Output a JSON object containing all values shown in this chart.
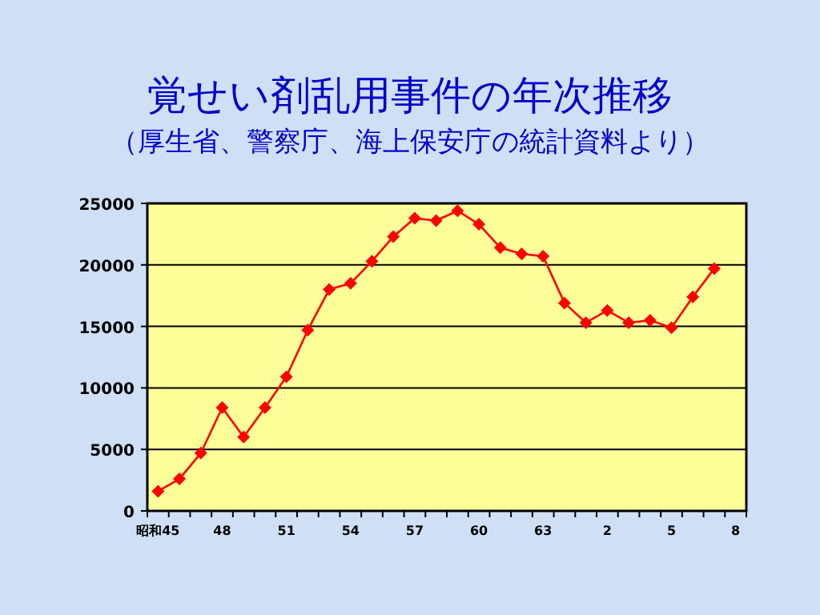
{
  "chart_data": {
    "type": "line",
    "title": "覚せい剤乱用事件の年次推移",
    "subtitle": "（厚生省、警察庁、海上保安庁の統計資料より）",
    "categories": [
      "昭和45",
      null,
      null,
      "48",
      null,
      null,
      "51",
      null,
      null,
      "54",
      null,
      null,
      "57",
      null,
      null,
      "60",
      null,
      null,
      "63",
      null,
      null,
      "2",
      null,
      null,
      "5",
      null,
      null,
      "8"
    ],
    "values": [
      1600,
      2600,
      4700,
      8400,
      6000,
      8400,
      10900,
      14700,
      18000,
      18500,
      20300,
      22300,
      23800,
      23600,
      24400,
      23300,
      21400,
      20900,
      20700,
      16900,
      15300,
      16300,
      15300,
      15500,
      14900,
      17400,
      19700,
      null
    ],
    "color": "#ff0000",
    "marker": "diamond",
    "line_style": "solid",
    "ylim": [
      0,
      25000
    ],
    "yticks": [
      0,
      5000,
      10000,
      15000,
      20000,
      25000
    ],
    "grid": "y"
  }
}
